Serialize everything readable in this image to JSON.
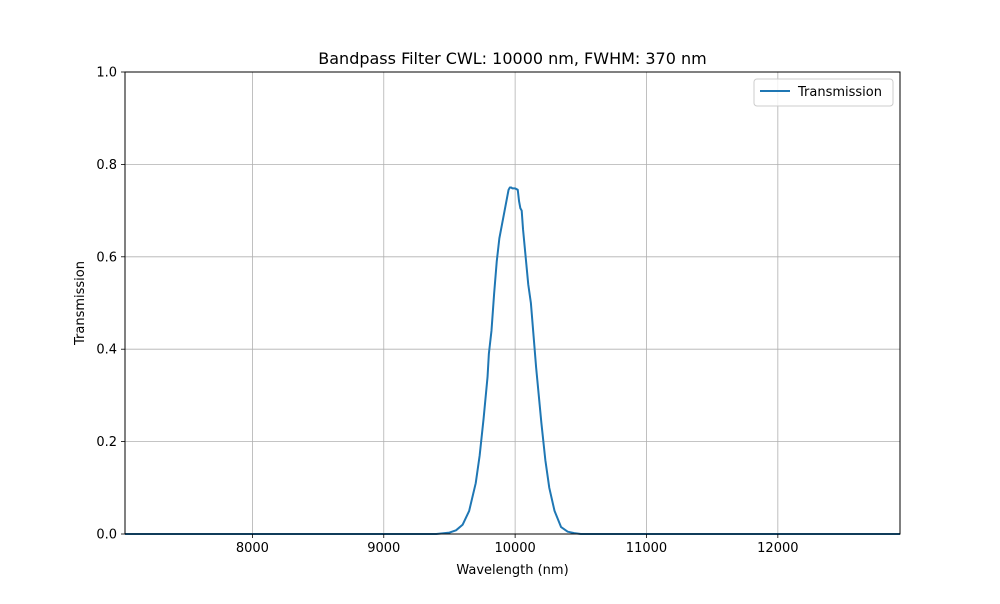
{
  "chart_data": {
    "type": "line",
    "title": "Bandpass Filter CWL: 10000 nm, FWHM: 370 nm",
    "xlabel": "Wavelength (nm)",
    "ylabel": "Transmission",
    "xlim": [
      7030,
      12930
    ],
    "ylim": [
      0.0,
      1.0
    ],
    "x_ticks": [
      8000,
      9000,
      10000,
      11000,
      12000
    ],
    "x_tick_labels": [
      "8000",
      "9000",
      "10000",
      "11000",
      "12000"
    ],
    "y_ticks": [
      0.0,
      0.2,
      0.4,
      0.6,
      0.8,
      1.0
    ],
    "y_tick_labels": [
      "0.0",
      "0.2",
      "0.4",
      "0.6",
      "0.8",
      "1.0"
    ],
    "grid": true,
    "legend_position": "top-right",
    "series": [
      {
        "name": "Transmission",
        "color": "#1f77b4",
        "x": [
          7030,
          9400,
          9500,
          9550,
          9600,
          9650,
          9700,
          9730,
          9760,
          9790,
          9800,
          9820,
          9840,
          9860,
          9880,
          9900,
          9920,
          9940,
          9950,
          9960,
          9970,
          9980,
          10000,
          10020,
          10030,
          10040,
          10050,
          10060,
          10080,
          10100,
          10120,
          10140,
          10160,
          10180,
          10200,
          10230,
          10260,
          10300,
          10350,
          10400,
          10450,
          10500,
          10600,
          12930
        ],
        "y": [
          0.0,
          0.0,
          0.003,
          0.008,
          0.02,
          0.05,
          0.11,
          0.17,
          0.25,
          0.34,
          0.39,
          0.44,
          0.52,
          0.59,
          0.64,
          0.67,
          0.7,
          0.73,
          0.745,
          0.75,
          0.75,
          0.748,
          0.748,
          0.745,
          0.72,
          0.705,
          0.7,
          0.66,
          0.6,
          0.54,
          0.5,
          0.43,
          0.36,
          0.3,
          0.24,
          0.16,
          0.1,
          0.05,
          0.015,
          0.005,
          0.002,
          0.0,
          0.0,
          0.0
        ]
      }
    ]
  }
}
